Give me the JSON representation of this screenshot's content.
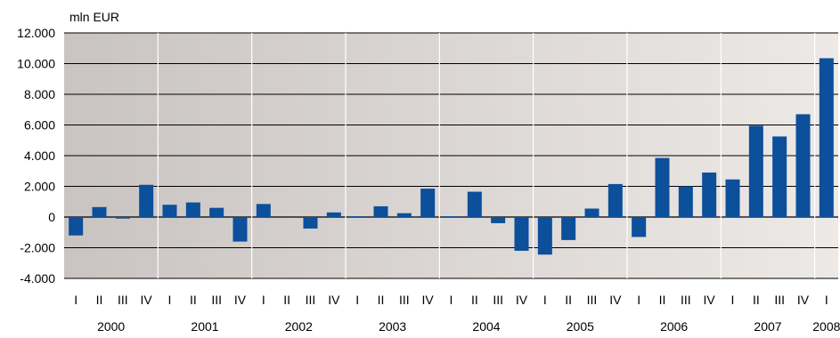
{
  "chart_data": {
    "type": "bar",
    "y_unit_label": "mln EUR",
    "title": "",
    "xlabel": "",
    "ylabel": "",
    "ylim": [
      -4000,
      12000
    ],
    "y_ticks": [
      -4000,
      -2000,
      0,
      2000,
      4000,
      6000,
      8000,
      10000,
      12000
    ],
    "y_tick_labels": [
      "-4.000",
      "-2.000",
      "0",
      "2.000",
      "4.000",
      "6.000",
      "8.000",
      "10.000",
      "12.000"
    ],
    "grid": true,
    "legend": "none",
    "bar_color": "#0c4f9b",
    "plot_background_start": "#c9c4c2",
    "plot_background_end": "#ede9e6",
    "quarters": [
      "I",
      "II",
      "III",
      "IV",
      "I",
      "II",
      "III",
      "IV",
      "I",
      "II",
      "III",
      "IV",
      "I",
      "II",
      "III",
      "IV",
      "I",
      "II",
      "III",
      "IV",
      "I",
      "II",
      "III",
      "IV",
      "I",
      "II",
      "III",
      "IV",
      "I",
      "II",
      "III",
      "IV",
      "I"
    ],
    "years": [
      {
        "label": "2000",
        "quarters": 4
      },
      {
        "label": "2001",
        "quarters": 4
      },
      {
        "label": "2002",
        "quarters": 4
      },
      {
        "label": "2003",
        "quarters": 4
      },
      {
        "label": "2004",
        "quarters": 4
      },
      {
        "label": "2005",
        "quarters": 4
      },
      {
        "label": "2006",
        "quarters": 4
      },
      {
        "label": "2007",
        "quarters": 4
      },
      {
        "label": "2008",
        "quarters": 1
      }
    ],
    "values": [
      -1200,
      650,
      -100,
      2100,
      800,
      950,
      600,
      -1600,
      850,
      0,
      -750,
      300,
      50,
      700,
      250,
      1850,
      50,
      1650,
      -400,
      -2200,
      -2450,
      -1500,
      550,
      2150,
      -1300,
      3850,
      2000,
      2900,
      2450,
      5950,
      5250,
      6700,
      10350
    ]
  }
}
